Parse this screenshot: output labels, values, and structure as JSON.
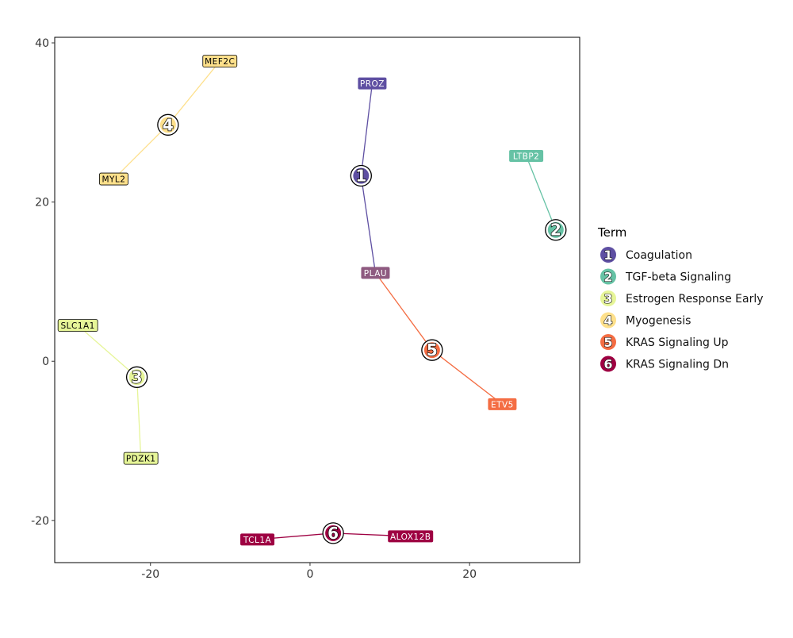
{
  "chart_data": {
    "type": "scatter",
    "subtype": "network",
    "title": "",
    "xlabel": "",
    "ylabel": "",
    "xlim": [
      -32,
      33.8
    ],
    "ylim": [
      -25.3,
      40.7
    ],
    "x_ticks": [
      -20,
      0,
      20
    ],
    "y_ticks": [
      -20,
      0,
      20,
      40
    ],
    "x_tick_labels": [
      "-20",
      "0",
      "20"
    ],
    "y_tick_labels": [
      "-20",
      "0",
      "20",
      "40"
    ],
    "grid": false,
    "legend": {
      "title": "Term",
      "placement": "right"
    },
    "terms": [
      {
        "id": "1",
        "name": "Coagulation",
        "color": "#5E4FA2",
        "x": 6.4,
        "y": 23.3
      },
      {
        "id": "2",
        "name": "TGF-beta Signaling",
        "color": "#66C2A5",
        "x": 30.8,
        "y": 16.5
      },
      {
        "id": "3",
        "name": "Estrogen Response Early",
        "color": "#E6F598",
        "x": -21.7,
        "y": -2.0
      },
      {
        "id": "4",
        "name": "Myogenesis",
        "color": "#FEE08B",
        "x": -17.8,
        "y": 29.7
      },
      {
        "id": "5",
        "name": "KRAS Signaling Up",
        "color": "#F46D43",
        "x": 15.3,
        "y": 1.4
      },
      {
        "id": "6",
        "name": "KRAS Signaling Dn",
        "color": "#9E0142",
        "x": 2.9,
        "y": -21.6
      }
    ],
    "genes": [
      {
        "name": "PROZ",
        "x": 7.8,
        "y": 34.9,
        "color": "#5E4FA2",
        "text_color": "#ffffff"
      },
      {
        "name": "LTBP2",
        "x": 27.1,
        "y": 25.8,
        "color": "#66C2A5",
        "text_color": "#ffffff"
      },
      {
        "name": "PLAU",
        "x": 8.2,
        "y": 11.1,
        "color": "#8E5A80",
        "text_color": "#ffffff"
      },
      {
        "name": "MEF2C",
        "x": -11.3,
        "y": 37.7,
        "color": "#FEE08B",
        "text_color": "#000000"
      },
      {
        "name": "MYL2",
        "x": -24.6,
        "y": 22.9,
        "color": "#FEE08B",
        "text_color": "#000000"
      },
      {
        "name": "SLC1A1",
        "x": -29.1,
        "y": 4.5,
        "color": "#E6F598",
        "text_color": "#000000"
      },
      {
        "name": "PDZK1",
        "x": -21.2,
        "y": -12.2,
        "color": "#E6F598",
        "text_color": "#000000"
      },
      {
        "name": "ETV5",
        "x": 24.1,
        "y": -5.4,
        "color": "#F46D43",
        "text_color": "#ffffff"
      },
      {
        "name": "TCL1A",
        "x": -6.6,
        "y": -22.4,
        "color": "#9E0142",
        "text_color": "#ffffff"
      },
      {
        "name": "ALOX12B",
        "x": 12.6,
        "y": -22.0,
        "color": "#9E0142",
        "text_color": "#ffffff"
      }
    ],
    "edges": [
      {
        "term": "1",
        "gene": "PROZ"
      },
      {
        "term": "1",
        "gene": "PLAU"
      },
      {
        "term": "5",
        "gene": "PLAU"
      },
      {
        "term": "5",
        "gene": "ETV5"
      },
      {
        "term": "2",
        "gene": "LTBP2"
      },
      {
        "term": "4",
        "gene": "MEF2C"
      },
      {
        "term": "4",
        "gene": "MYL2"
      },
      {
        "term": "3",
        "gene": "SLC1A1"
      },
      {
        "term": "3",
        "gene": "PDZK1"
      },
      {
        "term": "6",
        "gene": "TCL1A"
      },
      {
        "term": "6",
        "gene": "ALOX12B"
      }
    ]
  }
}
